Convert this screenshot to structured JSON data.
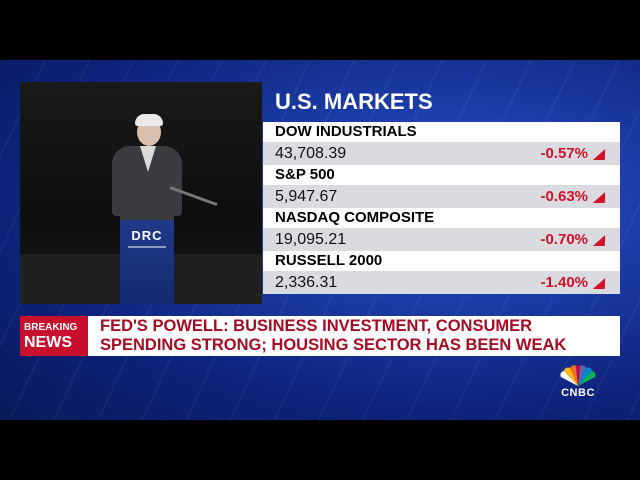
{
  "video": {
    "podium_logo": "DRC"
  },
  "markets": {
    "title": "U.S. MARKETS",
    "items": [
      {
        "name": "DOW INDUSTRIALS",
        "value": "43,708.39",
        "change": "-0.57%"
      },
      {
        "name": "S&P 500",
        "value": "5,947.67",
        "change": "-0.63%"
      },
      {
        "name": "NASDAQ COMPOSITE",
        "value": "19,095.21",
        "change": "-0.70%"
      },
      {
        "name": "RUSSELL 2000",
        "value": "2,336.31",
        "change": "-1.40%"
      }
    ],
    "change_color": "#d3122a",
    "change_icon": "triangle-icon"
  },
  "ticker": {
    "label_line1": "BREAKING",
    "label_line2": "NEWS",
    "headline_line1": "FED'S POWELL: BUSINESS INVESTMENT, CONSUMER",
    "headline_line2": "SPENDING STRONG; HOUSING SECTOR HAS BEEN WEAK",
    "label_color": "#c8102e"
  },
  "brand": {
    "name": "CNBC",
    "icon": "peacock-icon"
  }
}
